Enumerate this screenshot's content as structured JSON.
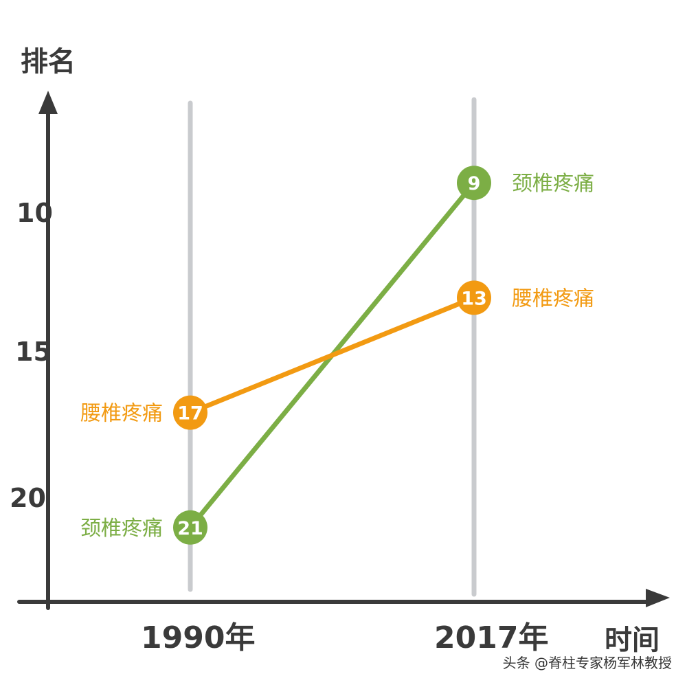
{
  "chart_data": {
    "type": "line",
    "title": "",
    "xlabel": "时间",
    "ylabel": "排名",
    "categories": [
      "1990年",
      "2017年"
    ],
    "yticks": [
      "10",
      "15",
      "20"
    ],
    "ylim": [
      22,
      5
    ],
    "y_inverted": true,
    "grid": "vertical lines at each category",
    "series": [
      {
        "color": "#7cae45",
        "values": [
          21,
          9
        ],
        "point_labels": [
          "21",
          "9"
        ],
        "end_labels": [
          "颈椎疼痛",
          "颈椎疼痛"
        ]
      },
      {
        "color": "#f29a12",
        "values": [
          17,
          13
        ],
        "point_labels": [
          "17",
          "13"
        ],
        "end_labels": [
          "腰椎疼痛",
          "腰椎疼痛"
        ]
      }
    ]
  },
  "watermark": "头条 @脊柱专家杨军林教授"
}
